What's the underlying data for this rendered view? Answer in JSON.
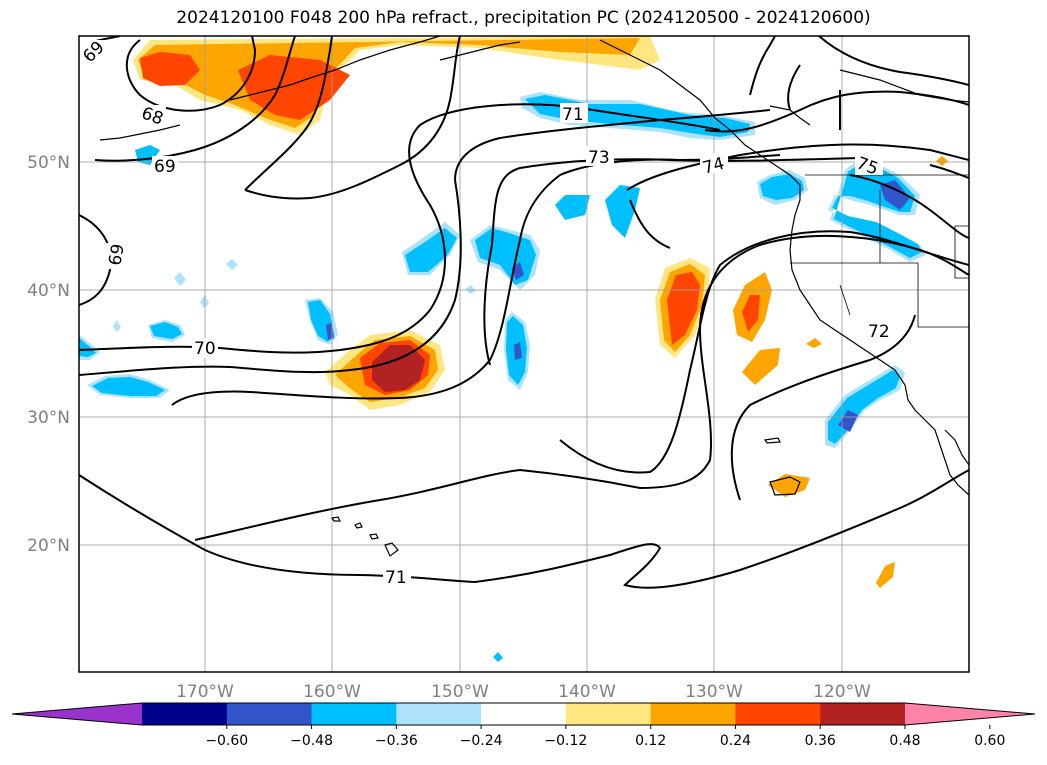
{
  "title": "2024120100 F048 200 hPa refract., precipitation PC (2024120500 - 2024120600)",
  "axes": {
    "lon_labels": [
      "170°W",
      "160°W",
      "150°W",
      "140°W",
      "130°W",
      "120°W"
    ],
    "lat_labels": [
      "50°N",
      "40°N",
      "30°N",
      "20°N"
    ]
  },
  "contour_labels": [
    "69",
    "68",
    "69",
    "69",
    "70",
    "71",
    "73",
    "74",
    "75",
    "72",
    "71"
  ],
  "colorbar": {
    "tick_labels": [
      "−0.60",
      "−0.48",
      "−0.36",
      "−0.24",
      "−0.12",
      "0.12",
      "0.24",
      "0.36",
      "0.48",
      "0.60"
    ],
    "colors": [
      "#9933cc",
      "#00008b",
      "#3355cc",
      "#00bfff",
      "#aee2fa",
      "#ffffff",
      "#ffe680",
      "#ffa500",
      "#ff4500",
      "#b22222",
      "#ff82a9"
    ]
  }
}
